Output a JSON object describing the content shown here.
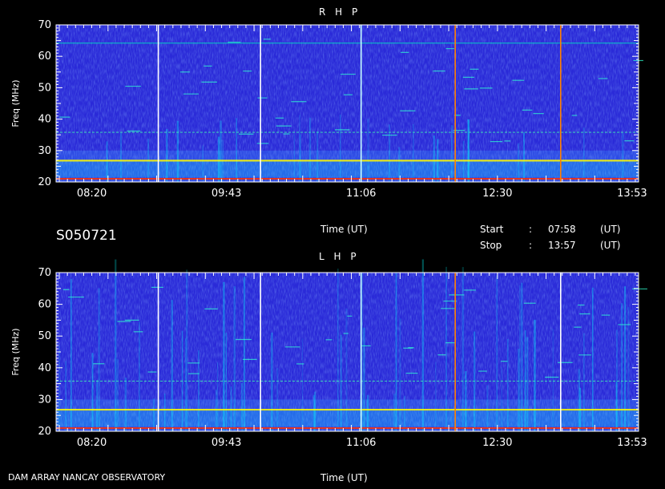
{
  "footer": {
    "observatory": "DAM ARRAY   NANCAY OBSERVATORY"
  },
  "info": {
    "session_id": "S050721",
    "start_label": "Start",
    "start_value": "07:58",
    "stop_label": "Stop",
    "stop_value": "13:57",
    "colon": ":",
    "unit": "(UT)"
  },
  "colors": {
    "background": "#000000",
    "text": "#ffffff",
    "spectrogram_base": "#2a2ad8",
    "emission_low": "#00ffff",
    "emission_mid": "#ffff00",
    "emission_high": "#ff3000"
  },
  "chart_data": [
    {
      "type": "heatmap",
      "title": "R H P",
      "xlabel": "Time (UT)",
      "ylabel": "Freq (MHz)",
      "x_ticks": [
        "08:20",
        "09:43",
        "11:06",
        "12:30",
        "13:53"
      ],
      "xlim": [
        "07:58",
        "13:57"
      ],
      "y_ticks": [
        20,
        30,
        40,
        50,
        60,
        70
      ],
      "ylim": [
        20,
        70
      ],
      "vertical_lines": [
        {
          "time": "09:01",
          "color": "#ffffff"
        },
        {
          "time": "10:04",
          "color": "#ffffff"
        },
        {
          "time": "11:06",
          "color": "#c8ffff"
        },
        {
          "time": "12:04",
          "color": "#ff8000"
        },
        {
          "time": "13:09",
          "color": "#ff8000"
        }
      ],
      "horizontal_features": [
        {
          "freq": 64.2,
          "color": "#00e0c0"
        },
        {
          "freq": 35.8,
          "color": "#40ffb0"
        },
        {
          "freq": 26.8,
          "color": "#ffff00"
        },
        {
          "freq": 21.0,
          "color": "#ff3000"
        }
      ]
    },
    {
      "type": "heatmap",
      "title": "L H P",
      "xlabel": "Time (UT)",
      "ylabel": "Freq (MHz)",
      "x_ticks": [
        "08:20",
        "09:43",
        "11:06",
        "12:30",
        "13:53"
      ],
      "xlim": [
        "07:58",
        "13:57"
      ],
      "y_ticks": [
        20,
        30,
        40,
        50,
        60,
        70
      ],
      "ylim": [
        20,
        70
      ],
      "vertical_lines": [
        {
          "time": "09:01",
          "color": "#ffffff"
        },
        {
          "time": "10:04",
          "color": "#ffffff"
        },
        {
          "time": "11:06",
          "color": "#c8ffff"
        },
        {
          "time": "12:04",
          "color": "#ff8000"
        },
        {
          "time": "13:09",
          "color": "#ffffff"
        }
      ],
      "horizontal_features": [
        {
          "freq": 35.8,
          "color": "#40ffb0"
        },
        {
          "freq": 26.8,
          "color": "#ffff00"
        },
        {
          "freq": 21.0,
          "color": "#ff3000"
        }
      ]
    }
  ]
}
